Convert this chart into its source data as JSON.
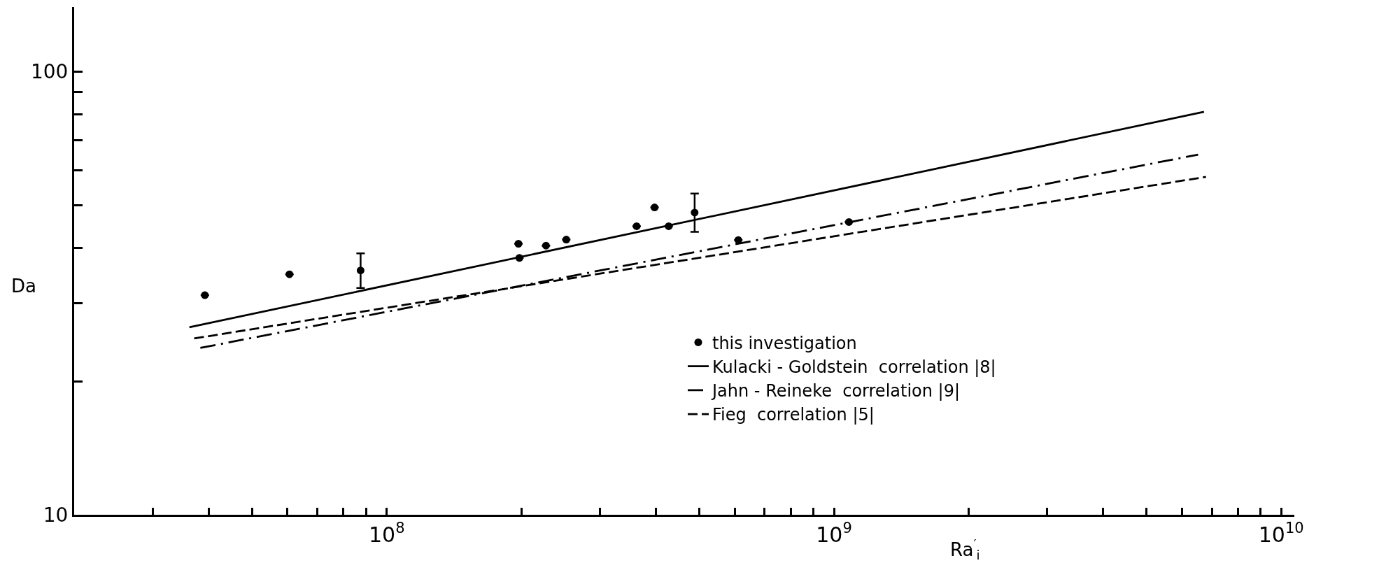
{
  "chart_data": {
    "type": "scatter",
    "xlabel": "Ra$^{′}$$_{i}$",
    "ylabel": "Da",
    "log": "xy",
    "grid": false,
    "legend": "bottom right",
    "xlim": [
      20000000.0,
      10700000000.0
    ],
    "ylim": [
      10,
      140
    ],
    "xticks": [
      {
        "value": 30000000.0,
        "label": null
      },
      {
        "value": 40000000.0,
        "label": null
      },
      {
        "value": 50000000.0,
        "label": null
      },
      {
        "value": 60000000.0,
        "label": null
      },
      {
        "value": 70000000.0,
        "label": null
      },
      {
        "value": 80000000.0,
        "label": null
      },
      {
        "value": 90000000.0,
        "label": null
      },
      {
        "value": 100000000.0,
        "label": "10$^{8}$"
      },
      {
        "value": 200000000.0,
        "label": null
      },
      {
        "value": 300000000.0,
        "label": null
      },
      {
        "value": 400000000.0,
        "label": null
      },
      {
        "value": 500000000.0,
        "label": null
      },
      {
        "value": 600000000.0,
        "label": null
      },
      {
        "value": 700000000.0,
        "label": null
      },
      {
        "value": 800000000.0,
        "label": null
      },
      {
        "value": 900000000.0,
        "label": null
      },
      {
        "value": 1000000000.0,
        "label": "10$^{9}$"
      },
      {
        "value": 2000000000.0,
        "label": null
      },
      {
        "value": 3000000000.0,
        "label": null
      },
      {
        "value": 4000000000.0,
        "label": null
      },
      {
        "value": 5000000000.0,
        "label": null
      },
      {
        "value": 6000000000.0,
        "label": null
      },
      {
        "value": 7000000000.0,
        "label": null
      },
      {
        "value": 8000000000.0,
        "label": null
      },
      {
        "value": 9000000000.0,
        "label": null
      },
      {
        "value": 10000000000.0,
        "label": "10$^{10}$"
      }
    ],
    "yticks": [
      10,
      {
        "value": 20,
        "label": null
      },
      {
        "value": 30,
        "label": null
      },
      {
        "value": 40,
        "label": null
      },
      {
        "value": 50,
        "label": null
      },
      {
        "value": 60,
        "label": null
      },
      {
        "value": 70,
        "label": null
      },
      {
        "value": 80,
        "label": null
      },
      {
        "value": 90,
        "label": null
      },
      100
    ],
    "series": [
      {
        "name": "this investigation",
        "color": "#000000",
        "marker": "circle",
        "x": [
          39200000.0,
          60600000.0,
          87400000.0,
          197000000.0,
          198000000.0,
          227000000.0,
          252000000.0,
          362000000.0,
          397000000.0,
          427000000.0,
          488000000.0,
          611000000.0,
          1080000000.0
        ],
        "values": [
          31.3,
          34.9,
          35.6,
          40.9,
          38.0,
          40.5,
          41.8,
          44.8,
          49.4,
          44.8,
          48.1,
          41.7,
          45.8
        ],
        "errors": [
          null,
          null,
          [
            32.5,
            38.9
          ],
          null,
          null,
          null,
          null,
          null,
          null,
          null,
          [
            43.5,
            53.1
          ],
          null,
          null
        ]
      },
      {
        "name": "Kulacki - Goldstein  correlation |8|",
        "type": "line",
        "color": "#000000",
        "marker": "none",
        "line_style": "solid",
        "x": [
          36200000.0,
          6720000000.0
        ],
        "values": [
          26.5,
          81.2
        ]
      },
      {
        "name": "Jahn - Reineke  correlation |9|",
        "type": "line",
        "color": "#000000",
        "marker": "none",
        "line_style": "dashdot",
        "x": [
          38300000.0,
          6520000000.0
        ],
        "values": [
          23.8,
          65.0
        ]
      },
      {
        "name": "Fieg  correlation |5|",
        "type": "line",
        "color": "#000000",
        "marker": "none",
        "line_style": "dashed",
        "x": [
          37100000.0,
          6790000000.0
        ],
        "values": [
          25.0,
          57.9
        ]
      }
    ]
  }
}
